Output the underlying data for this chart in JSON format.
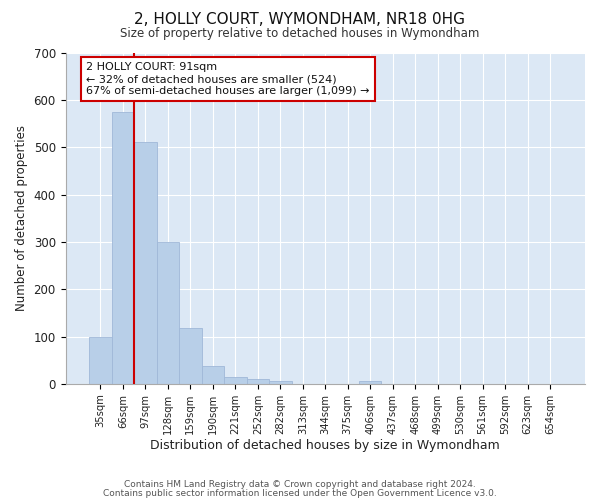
{
  "title": "2, HOLLY COURT, WYMONDHAM, NR18 0HG",
  "subtitle": "Size of property relative to detached houses in Wymondham",
  "xlabel": "Distribution of detached houses by size in Wymondham",
  "ylabel": "Number of detached properties",
  "categories": [
    "35sqm",
    "66sqm",
    "97sqm",
    "128sqm",
    "159sqm",
    "190sqm",
    "221sqm",
    "252sqm",
    "282sqm",
    "313sqm",
    "344sqm",
    "375sqm",
    "406sqm",
    "437sqm",
    "468sqm",
    "499sqm",
    "530sqm",
    "561sqm",
    "592sqm",
    "623sqm",
    "654sqm"
  ],
  "values": [
    100,
    575,
    510,
    300,
    118,
    38,
    15,
    10,
    7,
    0,
    0,
    0,
    7,
    0,
    0,
    0,
    0,
    0,
    0,
    0,
    0
  ],
  "bar_color": "#b8cfe8",
  "bar_edge_color": "#a0b8d8",
  "vline_x": 2.0,
  "vline_color": "#cc0000",
  "annotation_text": "2 HOLLY COURT: 91sqm\n← 32% of detached houses are smaller (524)\n67% of semi-detached houses are larger (1,099) →",
  "annotation_box_color": "#ffffff",
  "annotation_box_edge": "#cc0000",
  "ylim": [
    0,
    700
  ],
  "yticks": [
    0,
    100,
    200,
    300,
    400,
    500,
    600,
    700
  ],
  "footer1": "Contains HM Land Registry data © Crown copyright and database right 2024.",
  "footer2": "Contains public sector information licensed under the Open Government Licence v3.0.",
  "fig_bg_color": "#ffffff",
  "plot_bg_color": "#dce8f5"
}
